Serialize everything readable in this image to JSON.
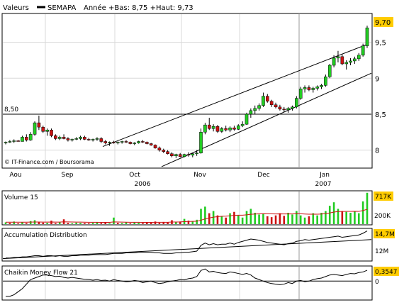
{
  "header": {
    "label": "Valeurs",
    "symbol": "SEMAPA",
    "range_text": "Année +Bas: 8,75 +Haut: 9,73"
  },
  "watermark": "© IT-Finance.com / Boursorama",
  "colors": {
    "up": "#22cc22",
    "down": "#cc1111",
    "accent": "#ffcc00",
    "grid": "#d8d8d8",
    "frame": "#000000"
  },
  "chart_data": [
    {
      "type": "candlestick",
      "title": "",
      "ylim": [
        7.75,
        9.9
      ],
      "yticks": [
        "8",
        "8,5",
        "9",
        "9,5"
      ],
      "ytick_values": [
        8,
        8.5,
        9,
        9.5
      ],
      "month_labels": [
        "Aou",
        "Sep",
        "Oct",
        "Nov",
        "Dec",
        "Jan"
      ],
      "year_labels": [
        "2006",
        "2007"
      ],
      "reference_line": {
        "value": 8.5,
        "label": "8,50"
      },
      "last_value": 9.7,
      "last_label": "9,70",
      "trend_channel": {
        "upper": {
          "from": [
            "Oct",
            8.05
          ],
          "to": [
            "Jan end",
            9.47
          ]
        },
        "lower": {
          "from": [
            "Oct end",
            7.77
          ],
          "to": [
            "Jan end",
            9.07
          ]
        }
      },
      "candles": [
        [
          8.1,
          8.12,
          8.08,
          8.11
        ],
        [
          8.11,
          8.14,
          8.1,
          8.12
        ],
        [
          8.12,
          8.15,
          8.1,
          8.13
        ],
        [
          8.13,
          8.14,
          8.12,
          8.12
        ],
        [
          8.12,
          8.2,
          8.12,
          8.18
        ],
        [
          8.18,
          8.22,
          8.12,
          8.14
        ],
        [
          8.14,
          8.25,
          8.13,
          8.22
        ],
        [
          8.22,
          8.4,
          8.2,
          8.38
        ],
        [
          8.38,
          8.48,
          8.28,
          8.32
        ],
        [
          8.32,
          8.34,
          8.24,
          8.26
        ],
        [
          8.26,
          8.3,
          8.2,
          8.28
        ],
        [
          8.28,
          8.3,
          8.18,
          8.2
        ],
        [
          8.2,
          8.22,
          8.14,
          8.16
        ],
        [
          8.16,
          8.2,
          8.14,
          8.18
        ],
        [
          8.18,
          8.22,
          8.15,
          8.16
        ],
        [
          8.16,
          8.18,
          8.12,
          8.14
        ],
        [
          8.14,
          8.16,
          8.12,
          8.15
        ],
        [
          8.15,
          8.18,
          8.14,
          8.16
        ],
        [
          8.16,
          8.2,
          8.14,
          8.18
        ],
        [
          8.18,
          8.2,
          8.14,
          8.15
        ],
        [
          8.15,
          8.17,
          8.13,
          8.14
        ],
        [
          8.14,
          8.16,
          8.12,
          8.15
        ],
        [
          8.15,
          8.18,
          8.13,
          8.16
        ],
        [
          8.16,
          8.18,
          8.1,
          8.12
        ],
        [
          8.12,
          8.14,
          8.08,
          8.1
        ],
        [
          8.1,
          8.12,
          8.06,
          8.11
        ],
        [
          8.11,
          8.13,
          8.09,
          8.1
        ],
        [
          8.1,
          8.12,
          8.08,
          8.11
        ],
        [
          8.11,
          8.13,
          8.09,
          8.12
        ],
        [
          8.12,
          8.14,
          8.1,
          8.11
        ],
        [
          8.11,
          8.12,
          8.08,
          8.09
        ],
        [
          8.09,
          8.11,
          8.07,
          8.1
        ],
        [
          8.1,
          8.13,
          8.09,
          8.12
        ],
        [
          8.12,
          8.14,
          8.1,
          8.11
        ],
        [
          8.11,
          8.12,
          8.08,
          8.09
        ],
        [
          8.09,
          8.1,
          8.06,
          8.07
        ],
        [
          8.07,
          8.08,
          8.02,
          8.03
        ],
        [
          8.03,
          8.05,
          7.98,
          8.0
        ],
        [
          8.0,
          8.02,
          7.96,
          7.98
        ],
        [
          7.98,
          8.0,
          7.94,
          7.95
        ],
        [
          7.95,
          7.97,
          7.9,
          7.92
        ],
        [
          7.92,
          7.95,
          7.89,
          7.94
        ],
        [
          7.94,
          7.96,
          7.9,
          7.91
        ],
        [
          7.91,
          7.95,
          7.9,
          7.94
        ],
        [
          7.94,
          7.97,
          7.91,
          7.93
        ],
        [
          7.93,
          7.96,
          7.9,
          7.95
        ],
        [
          7.95,
          8.0,
          7.92,
          7.96
        ],
        [
          7.96,
          8.3,
          7.95,
          8.25
        ],
        [
          8.25,
          8.38,
          8.22,
          8.35
        ],
        [
          8.35,
          8.45,
          8.28,
          8.3
        ],
        [
          8.3,
          8.36,
          8.26,
          8.33
        ],
        [
          8.33,
          8.35,
          8.24,
          8.26
        ],
        [
          8.26,
          8.32,
          8.24,
          8.3
        ],
        [
          8.3,
          8.34,
          8.26,
          8.28
        ],
        [
          8.28,
          8.33,
          8.25,
          8.31
        ],
        [
          8.31,
          8.34,
          8.27,
          8.29
        ],
        [
          8.29,
          8.36,
          8.28,
          8.34
        ],
        [
          8.34,
          8.4,
          8.32,
          8.36
        ],
        [
          8.36,
          8.52,
          8.35,
          8.5
        ],
        [
          8.5,
          8.58,
          8.45,
          8.55
        ],
        [
          8.55,
          8.62,
          8.5,
          8.58
        ],
        [
          8.58,
          8.65,
          8.55,
          8.62
        ],
        [
          8.62,
          8.8,
          8.6,
          8.75
        ],
        [
          8.75,
          8.78,
          8.66,
          8.68
        ],
        [
          8.68,
          8.7,
          8.6,
          8.63
        ],
        [
          8.63,
          8.66,
          8.58,
          8.6
        ],
        [
          8.6,
          8.63,
          8.55,
          8.57
        ],
        [
          8.57,
          8.6,
          8.53,
          8.56
        ],
        [
          8.56,
          8.6,
          8.52,
          8.58
        ],
        [
          8.58,
          8.62,
          8.55,
          8.6
        ],
        [
          8.6,
          8.75,
          8.58,
          8.72
        ],
        [
          8.72,
          8.88,
          8.7,
          8.85
        ],
        [
          8.85,
          8.9,
          8.8,
          8.87
        ],
        [
          8.87,
          8.9,
          8.82,
          8.84
        ],
        [
          8.84,
          8.88,
          8.8,
          8.86
        ],
        [
          8.86,
          8.9,
          8.83,
          8.88
        ],
        [
          8.88,
          8.92,
          8.85,
          8.9
        ],
        [
          8.9,
          9.05,
          8.88,
          9.02
        ],
        [
          9.02,
          9.2,
          9.0,
          9.18
        ],
        [
          9.18,
          9.32,
          9.15,
          9.28
        ],
        [
          9.28,
          9.38,
          9.22,
          9.3
        ],
        [
          9.3,
          9.33,
          9.18,
          9.2
        ],
        [
          9.2,
          9.25,
          9.12,
          9.22
        ],
        [
          9.22,
          9.28,
          9.18,
          9.24
        ],
        [
          9.24,
          9.3,
          9.2,
          9.27
        ],
        [
          9.27,
          9.35,
          9.24,
          9.32
        ],
        [
          9.32,
          9.48,
          9.3,
          9.45
        ],
        [
          9.45,
          9.73,
          9.42,
          9.7
        ]
      ]
    },
    {
      "type": "bar",
      "title": "Volume 15",
      "yticks": [
        "200K"
      ],
      "last_label": "717K",
      "values": [
        40,
        30,
        60,
        20,
        45,
        25,
        70,
        90,
        50,
        35,
        30,
        80,
        25,
        40,
        110,
        30,
        20,
        35,
        30,
        25,
        20,
        30,
        45,
        25,
        40,
        20,
        150,
        30,
        25,
        40,
        20,
        35,
        30,
        25,
        40,
        30,
        60,
        30,
        50,
        40,
        90,
        45,
        60,
        120,
        80,
        70,
        100,
        350,
        400,
        250,
        300,
        200,
        180,
        150,
        250,
        280,
        200,
        150,
        300,
        350,
        260,
        220,
        240,
        180,
        160,
        200,
        250,
        190,
        260,
        220,
        300,
        200,
        150,
        180,
        250,
        200,
        260,
        300,
        420,
        500,
        350,
        300,
        280,
        260,
        300,
        250,
        520,
        717
      ],
      "up": [
        1,
        0,
        1,
        0,
        1,
        0,
        1,
        1,
        0,
        0,
        1,
        0,
        0,
        1,
        0,
        0,
        1,
        1,
        1,
        0,
        0,
        1,
        1,
        0,
        0,
        1,
        1,
        0,
        1,
        1,
        0,
        1,
        1,
        0,
        0,
        0,
        0,
        0,
        0,
        0,
        0,
        1,
        0,
        1,
        0,
        1,
        1,
        1,
        1,
        0,
        1,
        0,
        1,
        0,
        1,
        0,
        1,
        1,
        1,
        1,
        1,
        1,
        1,
        0,
        0,
        0,
        0,
        0,
        1,
        1,
        1,
        1,
        1,
        0,
        1,
        1,
        1,
        1,
        1,
        1,
        1,
        0,
        1,
        1,
        1,
        1,
        1,
        1
      ],
      "avg": [
        45,
        45,
        44,
        44,
        44,
        44,
        46,
        48,
        48,
        47,
        46,
        48,
        47,
        47,
        52,
        50,
        48,
        47,
        46,
        44,
        43,
        42,
        42,
        41,
        41,
        40,
        50,
        48,
        46,
        45,
        43,
        42,
        42,
        41,
        41,
        40,
        42,
        42,
        43,
        43,
        48,
        48,
        50,
        56,
        60,
        62,
        66,
        90,
        120,
        140,
        160,
        170,
        180,
        182,
        190,
        200,
        205,
        205,
        212,
        225,
        232,
        236,
        240,
        238,
        235,
        234,
        236,
        234,
        236,
        234,
        240,
        238,
        232,
        228,
        230,
        228,
        232,
        240,
        256,
        276,
        288,
        290,
        292,
        292,
        294,
        292,
        310,
        340
      ]
    },
    {
      "type": "line",
      "title": "Accumulation Distribution",
      "yticks": [
        "12M"
      ],
      "last_label": "14,7M",
      "values": [
        10.0,
        10.0,
        10.1,
        10.1,
        10.2,
        10.2,
        10.3,
        10.4,
        10.4,
        10.3,
        10.4,
        10.4,
        10.3,
        10.4,
        10.3,
        10.3,
        10.4,
        10.4,
        10.5,
        10.5,
        10.5,
        10.6,
        10.6,
        10.6,
        10.6,
        10.7,
        10.8,
        10.8,
        10.8,
        10.9,
        10.9,
        10.9,
        11.0,
        11.0,
        11.0,
        11.0,
        10.9,
        10.9,
        10.8,
        10.8,
        10.8,
        10.9,
        10.9,
        11.0,
        11.0,
        11.1,
        11.2,
        12.2,
        12.6,
        12.3,
        12.5,
        12.3,
        12.4,
        12.4,
        12.6,
        12.4,
        12.7,
        12.9,
        13.1,
        13.3,
        13.2,
        13.1,
        12.9,
        12.7,
        12.6,
        12.5,
        12.4,
        12.3,
        12.5,
        12.6,
        12.9,
        13.0,
        13.2,
        13.1,
        13.2,
        13.3,
        13.4,
        13.5,
        13.6,
        13.7,
        13.8,
        13.6,
        13.7,
        13.8,
        13.9,
        14.0,
        14.3,
        14.7
      ],
      "trend": {
        "from": [
          9.9,
          10.0
        ],
        "to": [
          14.2,
          13.2
        ]
      }
    },
    {
      "type": "line",
      "title": "Chaikin Money Flow 21",
      "yticks": [
        "0"
      ],
      "last_label": "0,3547",
      "values": [
        -0.5,
        -0.5,
        -0.45,
        -0.35,
        -0.25,
        -0.1,
        0.05,
        0.1,
        0.15,
        0.2,
        0.2,
        0.18,
        0.15,
        0.16,
        0.12,
        0.1,
        0.12,
        0.1,
        0.08,
        0.06,
        0.05,
        0.03,
        0.05,
        0.02,
        0.03,
        0.0,
        0.05,
        0.02,
        0.0,
        -0.02,
        -0.01,
        0.02,
        0.0,
        -0.05,
        -0.02,
        0.0,
        -0.05,
        -0.08,
        -0.06,
        -0.02,
        0.0,
        0.02,
        0.05,
        0.04,
        0.08,
        0.1,
        0.15,
        0.35,
        0.4,
        0.3,
        0.32,
        0.28,
        0.26,
        0.25,
        0.3,
        0.28,
        0.25,
        0.22,
        0.25,
        0.2,
        0.1,
        0.05,
        0.0,
        -0.05,
        -0.08,
        -0.1,
        -0.12,
        -0.1,
        -0.05,
        -0.08,
        0.0,
        0.02,
        -0.02,
        0.0,
        0.05,
        0.08,
        0.1,
        0.15,
        0.2,
        0.22,
        0.2,
        0.18,
        0.22,
        0.25,
        0.24,
        0.28,
        0.3,
        0.3547
      ]
    }
  ]
}
